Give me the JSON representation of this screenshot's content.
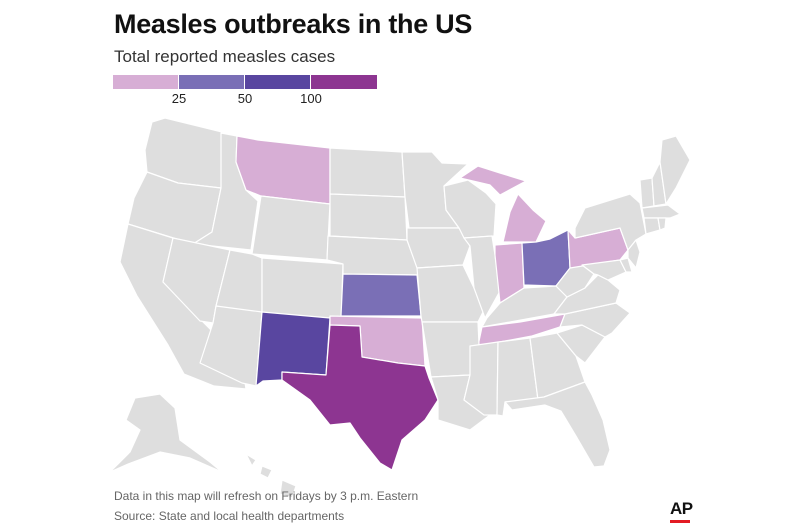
{
  "title": "Measles outbreaks in the US",
  "subtitle": "Total reported measles cases",
  "legend": {
    "colors": [
      "#d7aed5",
      "#7a6fb6",
      "#5946a0",
      "#8d3591"
    ],
    "ticks": [
      "25",
      "50",
      "100"
    ]
  },
  "base_color": "#dedede",
  "border_color": "#ffffff",
  "map_data": {
    "highlighted_states": [
      {
        "state": "Montana",
        "bin": "under 25",
        "color": "#d7aed5"
      },
      {
        "state": "Michigan",
        "bin": "under 25",
        "color": "#d7aed5"
      },
      {
        "state": "Indiana",
        "bin": "under 25",
        "color": "#d7aed5"
      },
      {
        "state": "Pennsylvania",
        "bin": "under 25",
        "color": "#d7aed5"
      },
      {
        "state": "Tennessee",
        "bin": "under 25",
        "color": "#d7aed5"
      },
      {
        "state": "Oklahoma",
        "bin": "under 25",
        "color": "#d7aed5"
      },
      {
        "state": "Kansas",
        "bin": "25–50",
        "color": "#7a6fb6"
      },
      {
        "state": "Ohio",
        "bin": "25–50",
        "color": "#7a6fb6"
      },
      {
        "state": "New Mexico",
        "bin": "50–100",
        "color": "#5946a0"
      },
      {
        "state": "Texas",
        "bin": "100+",
        "color": "#8d3591"
      }
    ]
  },
  "footer": {
    "note": "Data in this map will refresh on Fridays by 3 p.m. Eastern",
    "source": "Source: State and local health departments"
  },
  "logo": "AP",
  "logo_accent": "#e31b23"
}
